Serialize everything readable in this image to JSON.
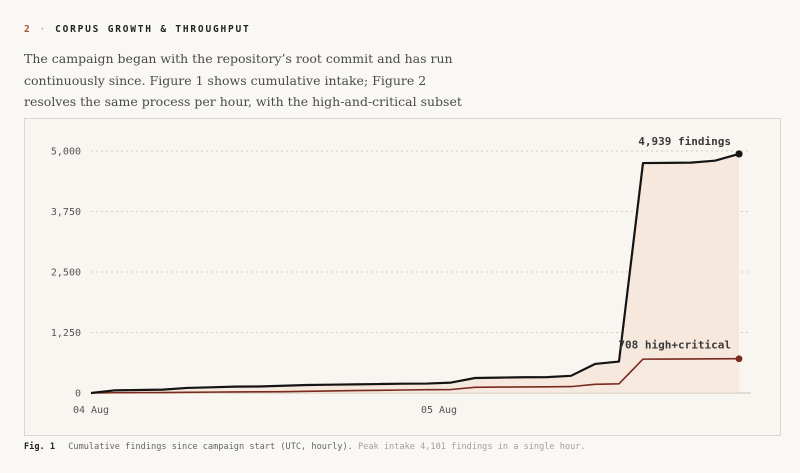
{
  "section": {
    "number": "2",
    "title": "CORPUS GROWTH & THROUGHPUT"
  },
  "intro": "The campaign began with the repository’s root commit and has run continuously since. Figure 1 shows cumulative intake; Figure 2 resolves the same process per hour, with the high-and-critical subset overlaid.",
  "chart_data": {
    "type": "line",
    "title": "",
    "xlabel": "",
    "ylabel": "",
    "ylim": [
      0,
      5000
    ],
    "y_ticks": [
      0,
      1250,
      2500,
      3750,
      5000
    ],
    "y_tick_labels": [
      "0",
      "1,250",
      "2,500",
      "3,750",
      "5,000"
    ],
    "x_range_hours": [
      0,
      27.5
    ],
    "x_ticks": [
      {
        "hour": 0,
        "label": "04 Aug"
      },
      {
        "hour": 14.5,
        "label": "05 Aug"
      }
    ],
    "grid": "horizontal dotted",
    "series": [
      {
        "name": "",
        "color": "#141414",
        "fill": "#f6e8dc",
        "end_label": "4,939 findings",
        "x": [
          0,
          1,
          2,
          3,
          4,
          5,
          6,
          7,
          8,
          9,
          10,
          11,
          12,
          13,
          14,
          15,
          16,
          17,
          18,
          19,
          20,
          21,
          22,
          23,
          24,
          25,
          26,
          27
        ],
        "y": [
          0,
          55,
          62,
          70,
          105,
          118,
          132,
          135,
          150,
          165,
          172,
          178,
          185,
          192,
          195,
          215,
          310,
          318,
          326,
          328,
          355,
          600,
          650,
          4751,
          4755,
          4760,
          4800,
          4939
        ]
      },
      {
        "name": "",
        "color": "#7a2a1e",
        "end_label": "708 high+critical",
        "x": [
          0,
          1,
          2,
          3,
          4,
          5,
          6,
          7,
          8,
          9,
          10,
          11,
          12,
          13,
          14,
          15,
          16,
          17,
          18,
          19,
          20,
          21,
          22,
          23,
          24,
          25,
          26,
          27
        ],
        "y": [
          0,
          5,
          8,
          10,
          14,
          18,
          22,
          24,
          28,
          35,
          42,
          50,
          55,
          62,
          68,
          72,
          118,
          122,
          126,
          128,
          132,
          180,
          190,
          700,
          702,
          704,
          706,
          708
        ]
      }
    ]
  },
  "caption": {
    "label": "Fig. 1",
    "text": "Cumulative findings since campaign start (UTC, hourly).",
    "note": "Peak intake 4,101 findings in a single hour."
  },
  "colors": {
    "accent": "#a8532f",
    "main_line": "#141414",
    "subset_line": "#7a2a1e",
    "area_fill": "#f6e8dc"
  }
}
